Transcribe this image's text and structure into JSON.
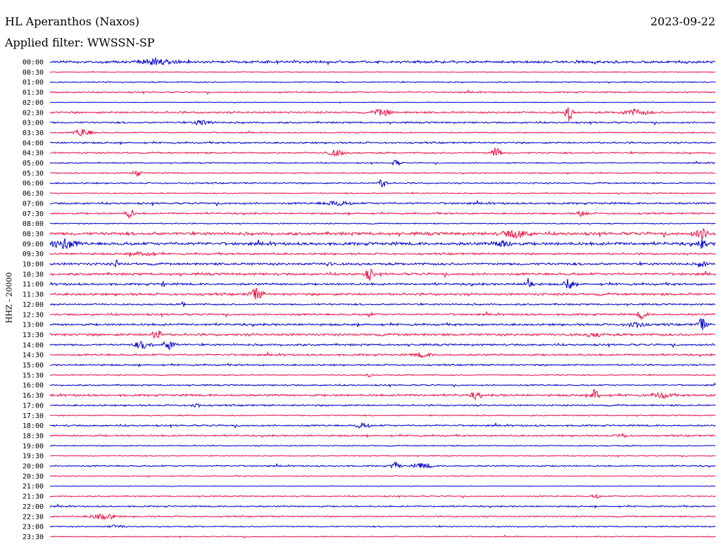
{
  "header": {
    "station": "HL Aperanthos (Naxos)",
    "filter": "Applied filter: WWSSN-SP",
    "date": "2023-09-22"
  },
  "colors": {
    "even_trace": "#0000cc",
    "odd_trace": "#ee1144"
  },
  "chart_data": {
    "type": "line",
    "title": "HL Aperanthos (Naxos)",
    "subtitle": "Applied filter: WWSSN-SP",
    "date": "2023-09-22",
    "ylabel": "HHZ - 20000",
    "grid": false,
    "rows": [
      "00:00",
      "00:30",
      "01:00",
      "01:30",
      "02:00",
      "02:30",
      "03:00",
      "03:30",
      "04:00",
      "04:30",
      "05:00",
      "05:30",
      "06:00",
      "06:30",
      "07:00",
      "07:30",
      "08:00",
      "08:30",
      "09:00",
      "09:30",
      "10:00",
      "10:30",
      "11:00",
      "11:30",
      "12:00",
      "12:30",
      "13:00",
      "13:30",
      "14:00",
      "14:30",
      "15:00",
      "15:30",
      "16:00",
      "16:30",
      "17:00",
      "17:30",
      "18:00",
      "18:30",
      "19:00",
      "19:30",
      "20:00",
      "20:30",
      "21:00",
      "21:30",
      "22:00",
      "22:30",
      "23:00",
      "23:30"
    ],
    "noise_level": [
      2,
      0.6,
      1,
      1.2,
      0.6,
      1.6,
      1.4,
      1,
      1.4,
      1.4,
      1,
      1,
      1.2,
      1,
      1.6,
      1.4,
      1,
      2.5,
      2.5,
      1.6,
      2,
      2,
      1.8,
      2,
      1.4,
      1.6,
      1.8,
      2,
      1.6,
      1.6,
      1.4,
      1,
      1.2,
      1.8,
      1.4,
      1,
      1.4,
      1.4,
      1,
      0.8,
      1.2,
      0.8,
      0.6,
      1,
      1.2,
      1.2,
      1,
      0.8
    ],
    "events": [
      {
        "row": 0,
        "t": 0.16,
        "amp": 4,
        "dur": 0.04
      },
      {
        "row": 5,
        "t": 0.5,
        "amp": 5,
        "dur": 0.02
      },
      {
        "row": 5,
        "t": 0.78,
        "amp": 12,
        "dur": 0.01
      },
      {
        "row": 5,
        "t": 0.88,
        "amp": 4,
        "dur": 0.03
      },
      {
        "row": 6,
        "t": 0.23,
        "amp": 4,
        "dur": 0.02
      },
      {
        "row": 7,
        "t": 0.05,
        "amp": 6,
        "dur": 0.02
      },
      {
        "row": 9,
        "t": 0.43,
        "amp": 4,
        "dur": 0.02
      },
      {
        "row": 9,
        "t": 0.67,
        "amp": 8,
        "dur": 0.01
      },
      {
        "row": 10,
        "t": 0.52,
        "amp": 4,
        "dur": 0.01
      },
      {
        "row": 11,
        "t": 0.13,
        "amp": 5,
        "dur": 0.01
      },
      {
        "row": 12,
        "t": 0.5,
        "amp": 6,
        "dur": 0.01
      },
      {
        "row": 14,
        "t": 0.43,
        "amp": 3,
        "dur": 0.03
      },
      {
        "row": 15,
        "t": 0.12,
        "amp": 7,
        "dur": 0.01
      },
      {
        "row": 15,
        "t": 0.8,
        "amp": 6,
        "dur": 0.01
      },
      {
        "row": 17,
        "t": 0.7,
        "amp": 5,
        "dur": 0.03
      },
      {
        "row": 17,
        "t": 0.98,
        "amp": 6,
        "dur": 0.02
      },
      {
        "row": 18,
        "t": 0.02,
        "amp": 7,
        "dur": 0.03
      },
      {
        "row": 18,
        "t": 0.68,
        "amp": 4,
        "dur": 0.02
      },
      {
        "row": 18,
        "t": 0.98,
        "amp": 6,
        "dur": 0.01
      },
      {
        "row": 19,
        "t": 0.14,
        "amp": 3,
        "dur": 0.03
      },
      {
        "row": 20,
        "t": 0.1,
        "amp": 5,
        "dur": 0.005
      },
      {
        "row": 20,
        "t": 0.42,
        "amp": 5,
        "dur": 0.005
      },
      {
        "row": 20,
        "t": 0.98,
        "amp": 4,
        "dur": 0.01
      },
      {
        "row": 21,
        "t": 0.48,
        "amp": 8,
        "dur": 0.01
      },
      {
        "row": 22,
        "t": 0.17,
        "amp": 6,
        "dur": 0.003
      },
      {
        "row": 22,
        "t": 0.72,
        "amp": 9,
        "dur": 0.01
      },
      {
        "row": 22,
        "t": 0.78,
        "amp": 9,
        "dur": 0.01
      },
      {
        "row": 23,
        "t": 0.31,
        "amp": 8,
        "dur": 0.015
      },
      {
        "row": 24,
        "t": 0.2,
        "amp": 6,
        "dur": 0.003
      },
      {
        "row": 25,
        "t": 0.48,
        "amp": 5,
        "dur": 0.005
      },
      {
        "row": 25,
        "t": 0.89,
        "amp": 7,
        "dur": 0.01
      },
      {
        "row": 26,
        "t": 0.88,
        "amp": 4,
        "dur": 0.02
      },
      {
        "row": 26,
        "t": 0.98,
        "amp": 9,
        "dur": 0.01
      },
      {
        "row": 27,
        "t": 0.16,
        "amp": 9,
        "dur": 0.01
      },
      {
        "row": 27,
        "t": 0.82,
        "amp": 3,
        "dur": 0.02
      },
      {
        "row": 28,
        "t": 0.14,
        "amp": 5,
        "dur": 0.02
      },
      {
        "row": 28,
        "t": 0.18,
        "amp": 6,
        "dur": 0.015
      },
      {
        "row": 29,
        "t": 0.56,
        "amp": 3,
        "dur": 0.02
      },
      {
        "row": 31,
        "t": 0.48,
        "amp": 2,
        "dur": 0.01
      },
      {
        "row": 33,
        "t": 0.64,
        "amp": 5,
        "dur": 0.01
      },
      {
        "row": 33,
        "t": 0.82,
        "amp": 10,
        "dur": 0.01
      },
      {
        "row": 33,
        "t": 0.92,
        "amp": 4,
        "dur": 0.02
      },
      {
        "row": 34,
        "t": 0.22,
        "amp": 3,
        "dur": 0.01
      },
      {
        "row": 36,
        "t": 0.47,
        "amp": 4,
        "dur": 0.015
      },
      {
        "row": 37,
        "t": 0.86,
        "amp": 4,
        "dur": 0.01
      },
      {
        "row": 40,
        "t": 0.52,
        "amp": 6,
        "dur": 0.01
      },
      {
        "row": 40,
        "t": 0.56,
        "amp": 4,
        "dur": 0.02
      },
      {
        "row": 43,
        "t": 0.82,
        "amp": 3,
        "dur": 0.01
      },
      {
        "row": 45,
        "t": 0.08,
        "amp": 4,
        "dur": 0.03
      },
      {
        "row": 46,
        "t": 0.1,
        "amp": 2,
        "dur": 0.02
      }
    ]
  }
}
